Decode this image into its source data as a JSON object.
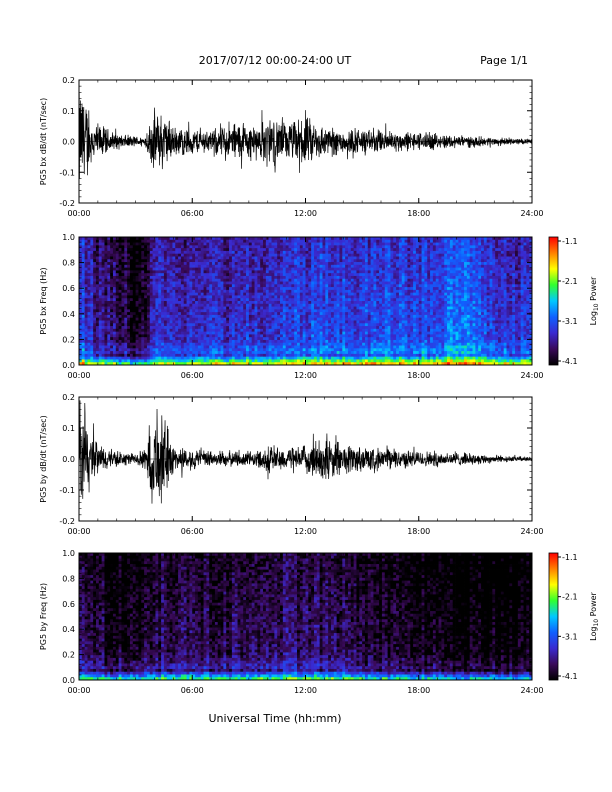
{
  "header": {
    "title": "2017/07/12  00:00-24:00 UT",
    "page": "Page 1/1"
  },
  "footer": {
    "xlabel": "Universal Time (hh:mm)"
  },
  "colors": {
    "trace": "#000000",
    "spectrogram_scale": [
      "#000000",
      "#3a0a5a",
      "#3a2ad0",
      "#1060ff",
      "#00c8ff",
      "#30ff30",
      "#ffff00",
      "#ff8000",
      "#ff0000"
    ]
  },
  "colorbar": {
    "ticks": [
      "-1.1",
      "-2.1",
      "-3.1",
      "-4.1"
    ],
    "label": "Log",
    "label_sub": "10",
    "label_suffix": " Power"
  },
  "chart_data": [
    {
      "type": "line",
      "ylabel": "PG5 bx dB/dt (nT/sec)",
      "xticks": [
        "00:00",
        "06:00",
        "12:00",
        "18:00",
        "24:00"
      ],
      "xlim": [
        0,
        24
      ],
      "ylim": [
        -0.2,
        0.2
      ],
      "yticks": [
        "0.2",
        "0.1",
        "0.0",
        "-0.1",
        "-0.2"
      ],
      "envelope": {
        "hours": [
          0,
          0.3,
          0.6,
          1,
          2,
          3,
          3.5,
          4,
          4.5,
          5,
          6,
          7,
          8,
          9,
          9.5,
          10,
          11,
          12,
          12.5,
          13,
          14,
          15,
          16,
          17,
          18,
          19,
          20,
          21,
          22,
          23,
          24
        ],
        "amplitude": [
          0.2,
          0.2,
          0.08,
          0.07,
          0.03,
          0.02,
          0.02,
          0.12,
          0.11,
          0.06,
          0.05,
          0.04,
          0.08,
          0.07,
          0.06,
          0.1,
          0.07,
          0.09,
          0.08,
          0.06,
          0.05,
          0.045,
          0.045,
          0.04,
          0.035,
          0.03,
          0.025,
          0.02,
          0.015,
          0.012,
          0.01
        ]
      }
    },
    {
      "type": "heatmap",
      "ylabel": "PG5 bx Freq (Hz)",
      "xticks": [
        "00:00",
        "06:00",
        "12:00",
        "18:00",
        "24:00"
      ],
      "xlim": [
        0,
        24
      ],
      "ylim": [
        0,
        1
      ],
      "yticks": [
        "1.0",
        "0.8",
        "0.6",
        "0.4",
        "0.2",
        "0.0"
      ],
      "zlim": [
        -4.1,
        -1.1
      ],
      "base_power": {
        "hours": [
          0,
          1,
          2,
          3,
          3.5,
          4,
          6,
          8,
          10,
          12,
          14,
          16,
          18,
          19,
          20,
          21,
          22,
          23,
          24
        ],
        "level": [
          -3.0,
          -3.5,
          -3.6,
          -3.9,
          -3.8,
          -3.2,
          -3.3,
          -3.3,
          -3.2,
          -3.1,
          -3.1,
          -3.1,
          -3.1,
          -3.0,
          -2.8,
          -2.9,
          -3.1,
          -3.2,
          -3.3
        ]
      }
    },
    {
      "type": "line",
      "ylabel": "PG5 by dB/dt (nT/sec)",
      "xticks": [
        "00:00",
        "06:00",
        "12:00",
        "18:00",
        "24:00"
      ],
      "xlim": [
        0,
        24
      ],
      "ylim": [
        -0.2,
        0.2
      ],
      "yticks": [
        "0.2",
        "0.1",
        "0.0",
        "-0.1",
        "-0.2"
      ],
      "envelope": {
        "hours": [
          0,
          0.3,
          0.6,
          1,
          2,
          3,
          3.5,
          3.8,
          4.5,
          5,
          6,
          7,
          8,
          9,
          9.5,
          10,
          11,
          12,
          12.5,
          13,
          14,
          15,
          16,
          17,
          18,
          19,
          20,
          21,
          22,
          23,
          24
        ],
        "amplitude": [
          0.2,
          0.2,
          0.1,
          0.06,
          0.03,
          0.02,
          0.04,
          0.16,
          0.17,
          0.05,
          0.04,
          0.03,
          0.03,
          0.03,
          0.03,
          0.06,
          0.04,
          0.05,
          0.07,
          0.09,
          0.06,
          0.05,
          0.04,
          0.035,
          0.03,
          0.03,
          0.025,
          0.02,
          0.015,
          0.01,
          0.008
        ]
      }
    },
    {
      "type": "heatmap",
      "ylabel": "PG5 by Freq (Hz)",
      "xticks": [
        "00:00",
        "06:00",
        "12:00",
        "18:00",
        "24:00"
      ],
      "xlim": [
        0,
        24
      ],
      "ylim": [
        0,
        1
      ],
      "yticks": [
        "1.0",
        "0.8",
        "0.6",
        "0.4",
        "0.2",
        "0.0"
      ],
      "zlim": [
        -4.1,
        -1.1
      ],
      "base_power": {
        "hours": [
          0,
          1,
          2,
          3,
          3.5,
          4,
          6,
          8,
          10,
          12,
          14,
          15,
          16,
          18,
          20,
          22,
          24
        ],
        "level": [
          -3.5,
          -3.8,
          -3.9,
          -4.0,
          -3.9,
          -3.7,
          -3.7,
          -3.7,
          -3.6,
          -3.6,
          -3.7,
          -3.8,
          -3.9,
          -3.95,
          -4.0,
          -4.0,
          -4.05
        ]
      }
    }
  ]
}
